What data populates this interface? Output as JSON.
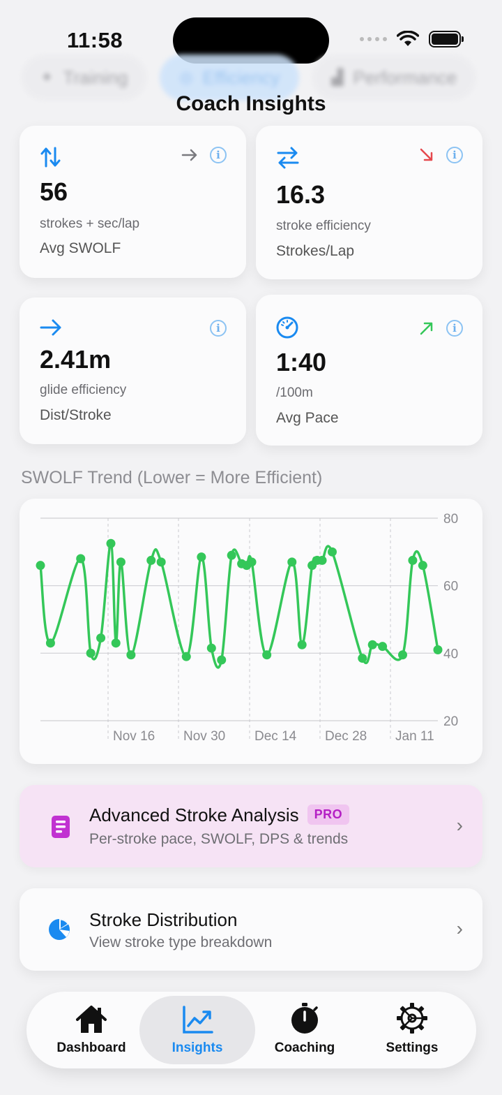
{
  "status_bar": {
    "time": "11:58"
  },
  "segments": [
    {
      "label": "Training",
      "active": false
    },
    {
      "label": "Efficiency",
      "active": true
    },
    {
      "label": "Performance",
      "active": false
    }
  ],
  "page_title": "Coach Insights",
  "metrics": [
    {
      "value": "56",
      "unit": "strokes + sec/lap",
      "label": "Avg SWOLF",
      "icon": "arrows-up-down-icon",
      "trend": "flat"
    },
    {
      "value": "16.3",
      "unit": "stroke efficiency",
      "label": "Strokes/Lap",
      "icon": "arrows-left-right-icon",
      "trend": "down"
    },
    {
      "value": "2.41m",
      "unit": "glide efficiency",
      "label": "Dist/Stroke",
      "icon": "arrow-right-icon",
      "trend": "none"
    },
    {
      "value": "1:40",
      "unit": "/100m",
      "label": "Avg Pace",
      "icon": "speedometer-icon",
      "trend": "up"
    }
  ],
  "chart_section_title": "SWOLF Trend (Lower = More Efficient)",
  "chart_data": {
    "type": "line",
    "title": "SWOLF Trend (Lower = More Efficient)",
    "x_tick_labels": [
      "Nov 16",
      "Nov 30",
      "Dec 14",
      "Dec 28",
      "Jan 11"
    ],
    "y_ticks": [
      20,
      40,
      60,
      80
    ],
    "ylim": [
      20,
      80
    ],
    "y_axis_position": "right",
    "series": [
      {
        "name": "SWOLF",
        "color": "#34c759",
        "x": [
          0,
          1,
          4,
          5,
          6,
          7,
          7.5,
          8,
          9,
          11,
          12,
          14.5,
          16,
          17,
          18,
          19,
          20,
          20.5,
          21,
          22.5,
          25,
          26,
          27,
          27.5,
          28,
          29,
          32,
          33,
          34,
          36,
          37,
          38,
          39.5
        ],
        "values": [
          66,
          43,
          68,
          40,
          44.5,
          72.5,
          43,
          67,
          39.5,
          67.5,
          67,
          39,
          68.5,
          41.5,
          38,
          69,
          66.5,
          66,
          67,
          39.5,
          67,
          42.5,
          66,
          67.5,
          67.5,
          70,
          38.5,
          42.5,
          42,
          39.5,
          67.5,
          66,
          41
        ]
      }
    ]
  },
  "promo": {
    "title": "Advanced Stroke Analysis",
    "badge": "PRO",
    "subtitle": "Per-stroke pace, SWOLF, DPS & trends",
    "accent": "#c132d1"
  },
  "distribution": {
    "title": "Stroke Distribution",
    "subtitle": "View stroke type breakdown",
    "accent": "#1a8af0"
  },
  "tabbar": [
    {
      "label": "Dashboard",
      "icon": "house-icon",
      "active": false
    },
    {
      "label": "Insights",
      "icon": "chart-trend-icon",
      "active": true
    },
    {
      "label": "Coaching",
      "icon": "stopwatch-icon",
      "active": false
    },
    {
      "label": "Settings",
      "icon": "gear-icon",
      "active": false
    }
  ],
  "colors": {
    "accent": "#1a8af0",
    "positive": "#34c759",
    "negative": "#e5484d",
    "pro": "#c132d1"
  }
}
